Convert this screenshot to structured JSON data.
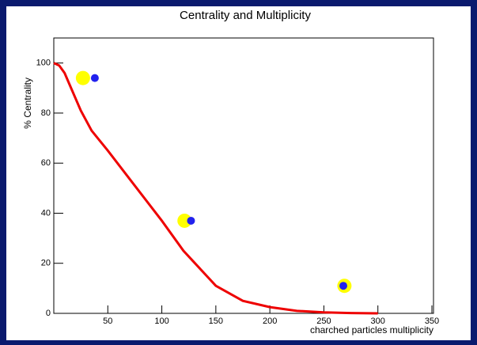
{
  "chart_data": {
    "type": "scatter",
    "title": "Centrality and Multiplicity",
    "x_label": "charched particles multiplicity",
    "y_label": "% Centrality",
    "xlim": [
      0,
      350
    ],
    "xticks": [
      50,
      100,
      150,
      200,
      250,
      300,
      350
    ],
    "ylim": [
      0,
      110
    ],
    "yticks": [
      0,
      20,
      40,
      60,
      80,
      100
    ],
    "series": [
      {
        "type": "line",
        "color": "#ee0000",
        "x": [
          0,
          5,
          10,
          15,
          25,
          35,
          50,
          75,
          100,
          120,
          150,
          175,
          200,
          225,
          250,
          275,
          300
        ],
        "values": [
          100,
          99,
          96,
          91,
          81,
          73,
          65,
          51,
          37,
          25,
          11,
          5,
          2.5,
          1,
          0.4,
          0.1,
          0
        ]
      },
      {
        "type": "scatter",
        "color": "#ffff00",
        "marker_size": 9,
        "x": [
          27,
          121,
          269
        ],
        "values": [
          94,
          37,
          11
        ]
      },
      {
        "type": "scatter",
        "color": "#2222ee",
        "marker_size": 5,
        "x": [
          38,
          127,
          268
        ],
        "values": [
          94,
          37,
          11
        ]
      }
    ]
  }
}
